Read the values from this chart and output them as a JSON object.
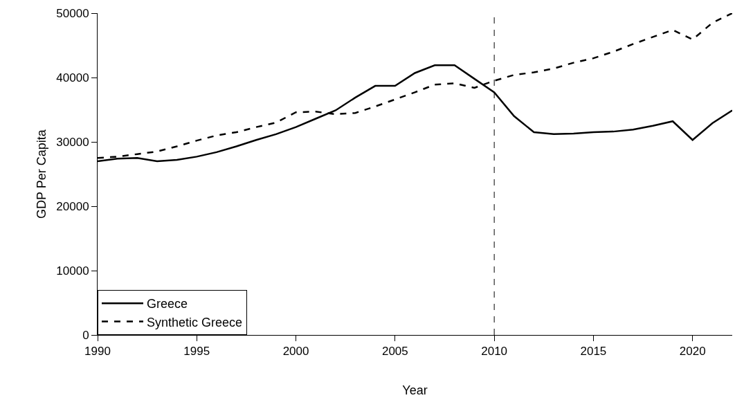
{
  "chart_data": {
    "type": "line",
    "xlabel": "Year",
    "ylabel": "GDP Per Capita",
    "x": [
      1990,
      1991,
      1992,
      1993,
      1994,
      1995,
      1996,
      1997,
      1998,
      1999,
      2000,
      2001,
      2002,
      2003,
      2004,
      2005,
      2006,
      2007,
      2008,
      2009,
      2010,
      2011,
      2012,
      2013,
      2014,
      2015,
      2016,
      2017,
      2018,
      2019,
      2020,
      2021,
      2022
    ],
    "series": [
      {
        "name": "Greece",
        "color": "#000000",
        "line_style": "solid",
        "values": [
          27000,
          27400,
          27500,
          27000,
          27200,
          27700,
          28400,
          29300,
          30300,
          31200,
          32300,
          33600,
          34900,
          36900,
          38700,
          38700,
          40700,
          41900,
          41900,
          39800,
          37700,
          34000,
          31500,
          31200,
          31300,
          31500,
          31600,
          31900,
          32500,
          33200,
          30300,
          32900,
          34900
        ]
      },
      {
        "name": "Synthetic Greece",
        "color": "#000000",
        "line_style": "dashed",
        "values": [
          27500,
          27700,
          28100,
          28500,
          29300,
          30200,
          31000,
          31500,
          32300,
          33000,
          34600,
          34700,
          34300,
          34500,
          35500,
          36600,
          37700,
          38900,
          39100,
          38400,
          39500,
          40400,
          40800,
          41400,
          42300,
          43000,
          44000,
          45200,
          46300,
          47400,
          45900,
          48500,
          50000
        ]
      }
    ],
    "xlim": [
      1990,
      2022
    ],
    "xticks": [
      1990,
      1995,
      2000,
      2005,
      2010,
      2015,
      2020
    ],
    "ylim": [
      0,
      50000
    ],
    "yticks": [
      0,
      10000,
      20000,
      30000,
      40000,
      50000
    ],
    "ref_lines": [
      {
        "axis": "x",
        "value": 2010,
        "color": "#000000",
        "line_style": "dashed"
      }
    ],
    "grid": false,
    "legend": "bottom left",
    "marker": "none"
  }
}
